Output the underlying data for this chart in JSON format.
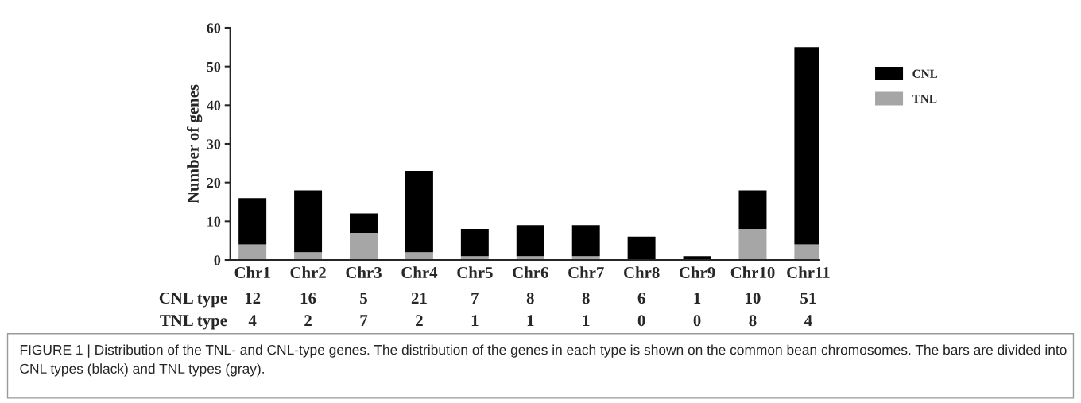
{
  "chart_data": {
    "type": "bar",
    "stacked": true,
    "ylabel": "Number of genes",
    "categories": [
      "Chr1",
      "Chr2",
      "Chr3",
      "Chr4",
      "Chr5",
      "Chr6",
      "Chr7",
      "Chr8",
      "Chr9",
      "Chr10",
      "Chr11"
    ],
    "series": [
      {
        "name": "TNL",
        "color": "#a6a6a6",
        "values": [
          4,
          2,
          7,
          2,
          1,
          1,
          1,
          0,
          0,
          8,
          4
        ]
      },
      {
        "name": "CNL",
        "color": "#000000",
        "values": [
          12,
          16,
          5,
          21,
          7,
          8,
          8,
          6,
          1,
          10,
          51
        ]
      }
    ],
    "ylim": [
      0,
      60
    ],
    "yticks": [
      0,
      10,
      20,
      30,
      40,
      50,
      60
    ],
    "grid": false,
    "legend": "right",
    "data_labels": true,
    "annotations": [
      "TNL type",
      "CNL type",
      "FIGURE 1 | Distribution of the TNL- and CNL-type genes. The distribution of the genes in each type is shown on the common bean chromosomes. The bars are divided into CNL types (black) and TNL types (gray)."
    ]
  }
}
